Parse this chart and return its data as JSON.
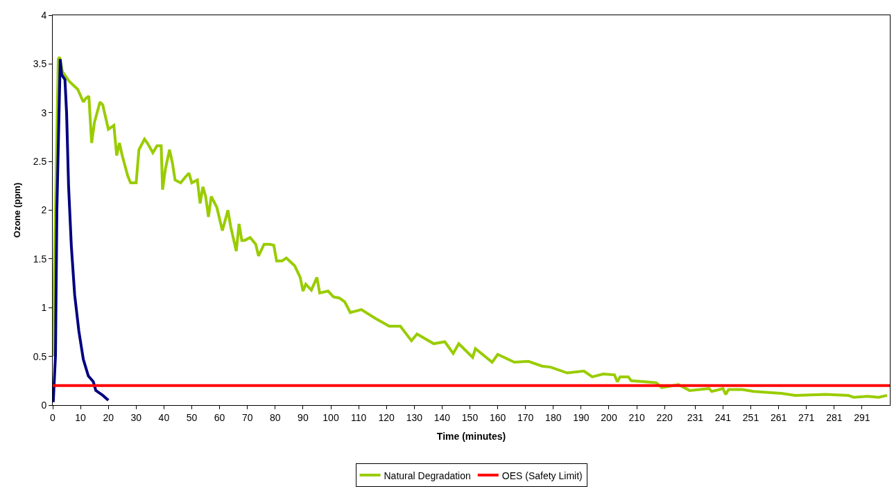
{
  "chart_data": {
    "type": "line",
    "xlabel": "Time (minutes)",
    "ylabel": "Ozone (ppm)",
    "xlim": [
      0,
      301
    ],
    "ylim": [
      0,
      4
    ],
    "xticks": [
      0,
      10,
      20,
      30,
      40,
      50,
      60,
      70,
      80,
      90,
      100,
      110,
      120,
      130,
      140,
      150,
      160,
      170,
      180,
      190,
      200,
      210,
      220,
      231,
      241,
      251,
      261,
      271,
      281,
      291
    ],
    "yticks": [
      0,
      0.5,
      1,
      1.5,
      2,
      2.5,
      3,
      3.5,
      4
    ],
    "legend": "bottom",
    "marker": "none",
    "line_style": "solid",
    "series": [
      {
        "name": "Natural Degradation",
        "color": "#99cc00",
        "x": [
          0,
          1,
          2,
          2.5,
          3.5,
          6,
          9,
          11,
          12,
          13,
          14,
          15,
          17,
          18,
          20,
          22,
          23,
          24,
          25,
          27,
          28,
          30,
          31,
          33,
          34,
          36,
          37.5,
          39,
          39.5,
          40.5,
          42,
          43,
          44,
          46,
          48,
          49,
          50,
          52,
          53,
          54,
          55,
          56,
          57,
          59,
          61,
          63,
          64,
          66,
          67,
          68,
          69,
          71,
          73,
          74,
          76,
          78,
          79.5,
          80.5,
          82.5,
          84,
          87,
          89,
          90,
          91,
          93,
          95,
          96,
          99,
          101,
          103,
          105,
          107,
          111,
          116,
          121,
          125,
          129,
          131,
          137,
          141,
          144,
          146,
          151,
          152,
          158,
          160,
          166,
          171,
          176,
          179,
          185,
          191,
          194,
          198,
          202,
          203,
          204,
          207,
          208,
          213,
          217,
          219,
          225,
          229,
          236,
          237,
          241,
          242,
          243,
          248,
          252,
          262,
          267,
          278,
          286,
          288,
          293,
          297,
          300
        ],
        "values": [
          0.5,
          2.0,
          3.55,
          3.57,
          3.42,
          3.32,
          3.24,
          3.11,
          3.15,
          3.17,
          2.69,
          2.9,
          3.11,
          3.08,
          2.83,
          2.87,
          2.56,
          2.69,
          2.56,
          2.35,
          2.28,
          2.28,
          2.62,
          2.73,
          2.69,
          2.59,
          2.66,
          2.66,
          2.21,
          2.42,
          2.62,
          2.49,
          2.31,
          2.28,
          2.35,
          2.38,
          2.28,
          2.31,
          2.07,
          2.24,
          2.14,
          1.93,
          2.14,
          2.03,
          1.79,
          2.0,
          1.83,
          1.58,
          1.86,
          1.69,
          1.69,
          1.72,
          1.65,
          1.53,
          1.65,
          1.65,
          1.64,
          1.48,
          1.48,
          1.51,
          1.43,
          1.31,
          1.17,
          1.24,
          1.18,
          1.31,
          1.15,
          1.17,
          1.11,
          1.1,
          1.06,
          0.95,
          0.98,
          0.89,
          0.81,
          0.81,
          0.66,
          0.73,
          0.63,
          0.65,
          0.53,
          0.63,
          0.49,
          0.58,
          0.44,
          0.52,
          0.44,
          0.45,
          0.4,
          0.39,
          0.33,
          0.35,
          0.29,
          0.32,
          0.31,
          0.24,
          0.29,
          0.29,
          0.25,
          0.24,
          0.23,
          0.18,
          0.21,
          0.15,
          0.17,
          0.14,
          0.17,
          0.11,
          0.16,
          0.16,
          0.14,
          0.12,
          0.1,
          0.11,
          0.1,
          0.08,
          0.09,
          0.08,
          0.1
        ]
      },
      {
        "color": "#000080",
        "x": [
          0.2,
          1,
          1.5,
          2.7,
          3.2,
          4.4,
          5,
          5.7,
          6.7,
          7.9,
          9.4,
          11,
          12.8,
          14.6,
          15.5,
          18,
          20
        ],
        "values": [
          0.03,
          0.51,
          2.0,
          3.55,
          3.39,
          3.34,
          2.99,
          2.25,
          1.63,
          1.13,
          0.76,
          0.47,
          0.3,
          0.24,
          0.15,
          0.1,
          0.05
        ]
      },
      {
        "name": "OES (Safety Limit)",
        "color": "#ff0000",
        "x": [
          0,
          301
        ],
        "values": [
          0.2,
          0.2
        ]
      }
    ]
  }
}
